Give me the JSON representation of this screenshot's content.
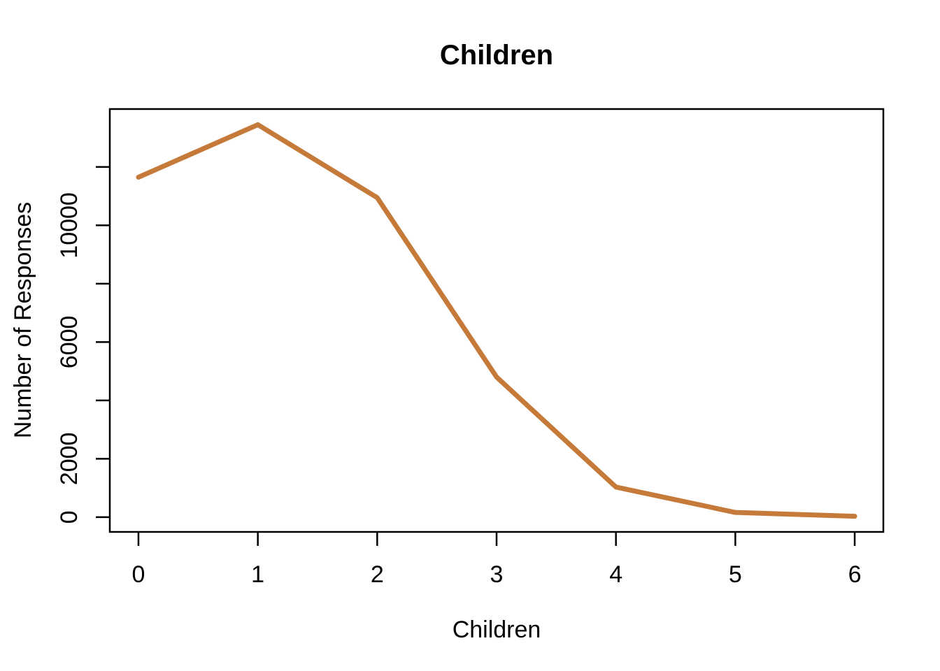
{
  "chart_data": {
    "type": "line",
    "title": "Children",
    "xlabel": "Children",
    "ylabel": "Number of Responses",
    "x": [
      0,
      1,
      2,
      3,
      4,
      5,
      6
    ],
    "values": [
      11650,
      13450,
      10950,
      4800,
      1030,
      160,
      30
    ],
    "x_ticks": [
      0,
      1,
      2,
      3,
      4,
      5,
      6
    ],
    "x_tick_labels": [
      "0",
      "1",
      "2",
      "3",
      "4",
      "5",
      "6"
    ],
    "y_ticks": [
      0,
      2000,
      4000,
      6000,
      8000,
      10000,
      12000
    ],
    "y_tick_labels": [
      "0",
      "2000",
      "",
      "6000",
      "",
      "10000",
      ""
    ],
    "xlim": [
      0,
      6
    ],
    "ylim_padding_fraction": 0.04,
    "grid": false,
    "legend": "none",
    "colors": {
      "line": "#C67A3A",
      "axis": "#000000",
      "background": "#FFFFFF",
      "text": "#000000"
    },
    "line_width": 7
  }
}
